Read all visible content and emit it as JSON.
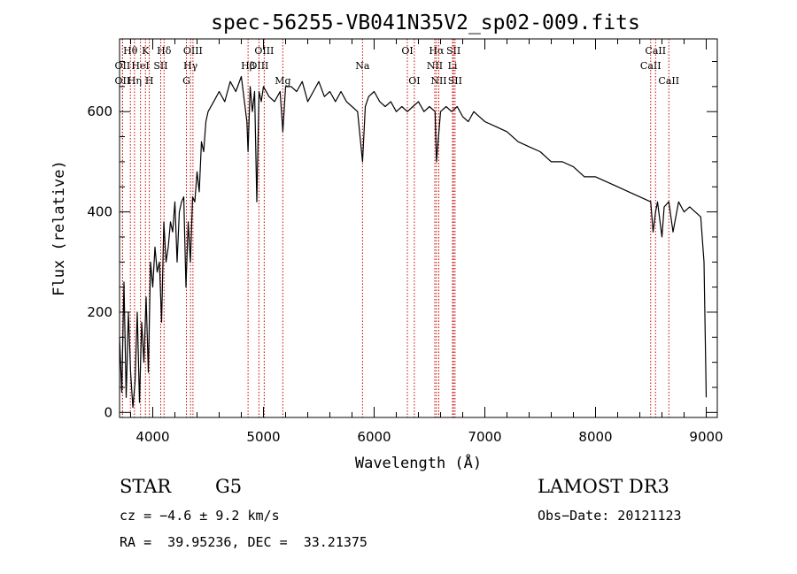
{
  "chart_data": {
    "type": "line",
    "title": "spec-56255-VB041N35V2_sp02-009.fits",
    "xlabel": "Wavelength (Å)",
    "ylabel": "Flux (relative)",
    "xlim": [
      3700,
      9100
    ],
    "ylim": [
      -10,
      745
    ],
    "x_ticks": [
      4000,
      5000,
      6000,
      7000,
      8000,
      9000
    ],
    "y_ticks": [
      0,
      200,
      400,
      600
    ],
    "x_tick_labels": [
      "4000",
      "5000",
      "6000",
      "7000",
      "8000",
      "9000"
    ],
    "y_tick_labels": [
      "0",
      "200",
      "400",
      "600"
    ],
    "series": [
      {
        "name": "spectrum",
        "color": "#000000",
        "x": [
          3700,
          3720,
          3740,
          3760,
          3780,
          3800,
          3820,
          3840,
          3860,
          3880,
          3900,
          3920,
          3940,
          3960,
          3980,
          4000,
          4020,
          4040,
          4060,
          4080,
          4100,
          4120,
          4140,
          4160,
          4180,
          4200,
          4220,
          4240,
          4260,
          4280,
          4300,
          4320,
          4340,
          4360,
          4380,
          4400,
          4420,
          4440,
          4460,
          4480,
          4500,
          4550,
          4600,
          4650,
          4700,
          4750,
          4800,
          4850,
          4861,
          4880,
          4900,
          4920,
          4940,
          4960,
          4980,
          5000,
          5050,
          5100,
          5150,
          5175,
          5200,
          5250,
          5300,
          5350,
          5400,
          5450,
          5500,
          5550,
          5600,
          5650,
          5700,
          5750,
          5800,
          5850,
          5895,
          5920,
          5950,
          6000,
          6050,
          6100,
          6150,
          6200,
          6250,
          6300,
          6350,
          6400,
          6450,
          6500,
          6550,
          6563,
          6600,
          6650,
          6700,
          6750,
          6800,
          6850,
          6900,
          6950,
          7000,
          7100,
          7200,
          7300,
          7400,
          7500,
          7600,
          7700,
          7800,
          7900,
          8000,
          8100,
          8200,
          8300,
          8400,
          8498,
          8520,
          8542,
          8560,
          8600,
          8620,
          8662,
          8700,
          8750,
          8800,
          8850,
          8900,
          8950,
          8980,
          9000
        ],
        "y": [
          150,
          40,
          260,
          30,
          200,
          80,
          10,
          60,
          200,
          20,
          180,
          100,
          230,
          80,
          300,
          250,
          330,
          280,
          300,
          180,
          380,
          300,
          330,
          380,
          360,
          420,
          300,
          400,
          420,
          430,
          250,
          380,
          300,
          430,
          420,
          480,
          440,
          540,
          520,
          580,
          600,
          620,
          640,
          620,
          660,
          640,
          670,
          580,
          520,
          650,
          600,
          640,
          420,
          640,
          620,
          650,
          630,
          620,
          640,
          560,
          650,
          650,
          640,
          660,
          620,
          640,
          660,
          630,
          640,
          620,
          640,
          620,
          610,
          600,
          500,
          610,
          630,
          640,
          620,
          610,
          620,
          600,
          610,
          600,
          610,
          620,
          600,
          610,
          600,
          500,
          600,
          610,
          600,
          610,
          590,
          580,
          600,
          590,
          580,
          570,
          560,
          540,
          530,
          520,
          500,
          500,
          490,
          470,
          470,
          460,
          450,
          440,
          430,
          420,
          360,
          400,
          420,
          350,
          410,
          420,
          360,
          420,
          400,
          410,
          400,
          390,
          300,
          30
        ]
      }
    ],
    "spectral_lines": [
      {
        "label": "Hθ",
        "wavelength": 3798,
        "row": 1
      },
      {
        "label": "OII",
        "wavelength": 3727,
        "row": 2
      },
      {
        "label": "OII",
        "wavelength": 3727,
        "row": 3
      },
      {
        "label": "HeI",
        "wavelength": 3889,
        "row": 2
      },
      {
        "label": "Hη",
        "wavelength": 3835,
        "row": 3
      },
      {
        "label": "K",
        "wavelength": 3934,
        "row": 1
      },
      {
        "label": "H",
        "wavelength": 3969,
        "row": 3
      },
      {
        "label": "SII",
        "wavelength": 4072,
        "row": 2
      },
      {
        "label": "Hδ",
        "wavelength": 4102,
        "row": 1
      },
      {
        "label": "OIII",
        "wavelength": 4363,
        "row": 1
      },
      {
        "label": "Hγ",
        "wavelength": 4341,
        "row": 2
      },
      {
        "label": "G",
        "wavelength": 4304,
        "row": 3
      },
      {
        "label": "Hβ",
        "wavelength": 4861,
        "row": 2
      },
      {
        "label": "OIII",
        "wavelength": 5007,
        "row": 1
      },
      {
        "label": "OIII",
        "wavelength": 4959,
        "row": 2
      },
      {
        "label": "Mg",
        "wavelength": 5175,
        "row": 3
      },
      {
        "label": "Na",
        "wavelength": 5895,
        "row": 2
      },
      {
        "label": "OI",
        "wavelength": 6300,
        "row": 1
      },
      {
        "label": "OI",
        "wavelength": 6363,
        "row": 3
      },
      {
        "label": "Hα",
        "wavelength": 6563,
        "row": 1
      },
      {
        "label": "NII",
        "wavelength": 6548,
        "row": 2
      },
      {
        "label": "NII",
        "wavelength": 6584,
        "row": 3
      },
      {
        "label": "SII",
        "wavelength": 6717,
        "row": 1
      },
      {
        "label": "Li",
        "wavelength": 6708,
        "row": 2
      },
      {
        "label": "SII",
        "wavelength": 6731,
        "row": 3
      },
      {
        "label": "CaII",
        "wavelength": 8542,
        "row": 1
      },
      {
        "label": "CaII",
        "wavelength": 8498,
        "row": 2
      },
      {
        "label": "CaII",
        "wavelength": 8662,
        "row": 3
      }
    ],
    "line_marker_color": "#cc0000"
  },
  "info": {
    "object_class": "STAR",
    "subclass": "G5",
    "survey": "LAMOST DR3",
    "cz": "cz = −4.6 ± 9.2 km/s",
    "obs_date": "Obs−Date: 20121123",
    "coords": "RA =  39.95236, DEC =  33.21375"
  }
}
